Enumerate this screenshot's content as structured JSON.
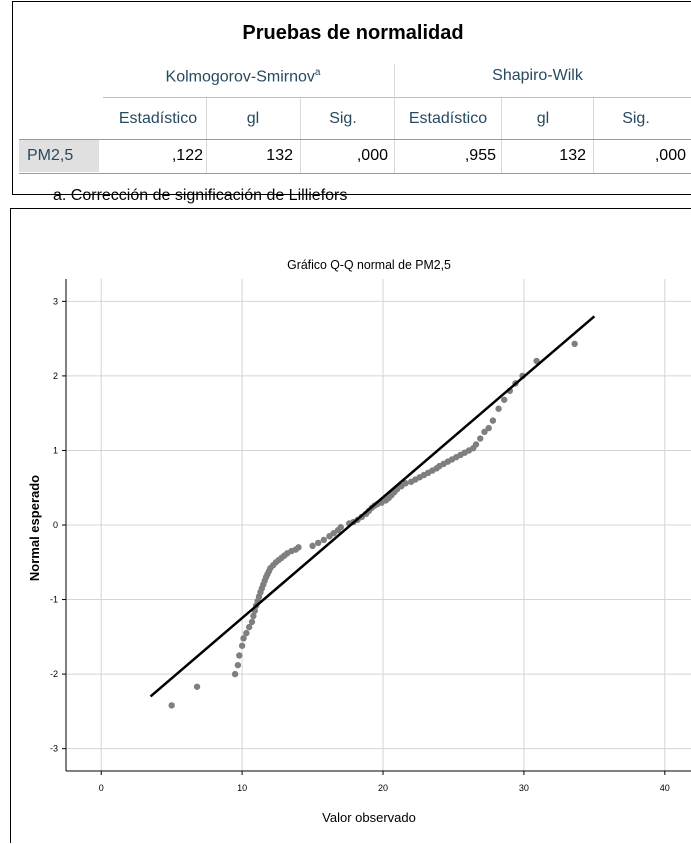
{
  "table": {
    "title": "Pruebas de normalidad",
    "group_ks": "Kolmogorov-Smirnov",
    "group_ks_sup": "a",
    "group_sw": "Shapiro-Wilk",
    "columns": [
      "Estadístico",
      "gl",
      "Sig.",
      "Estadístico",
      "gl",
      "Sig."
    ],
    "row_label": "PM2,5",
    "row_values": [
      ",122",
      "132",
      ",000",
      ",955",
      "132",
      ",000"
    ],
    "footnote": "a. Corrección de significación de Lilliefors"
  },
  "chart_data": {
    "type": "scatter",
    "title": "Gráfico Q-Q normal de PM2,5",
    "xlabel": "Valor observado",
    "ylabel": "Normal esperado",
    "xlim": [
      -2.5,
      42
    ],
    "ylim": [
      -3.3,
      3.3
    ],
    "x_ticks": [
      0,
      10,
      20,
      30,
      40
    ],
    "y_ticks": [
      3,
      2,
      1,
      0,
      -1,
      -2,
      -3
    ],
    "grid": true,
    "point_color": "#7f7f7f",
    "line_color": "#000000",
    "reference_line": [
      [
        3.5,
        -2.3
      ],
      [
        35,
        2.8
      ]
    ],
    "points": [
      [
        5.0,
        -2.42
      ],
      [
        6.8,
        -2.17
      ],
      [
        9.5,
        -2.0
      ],
      [
        9.7,
        -1.88
      ],
      [
        9.8,
        -1.75
      ],
      [
        10.0,
        -1.62
      ],
      [
        10.1,
        -1.52
      ],
      [
        10.3,
        -1.45
      ],
      [
        10.5,
        -1.37
      ],
      [
        10.7,
        -1.3
      ],
      [
        10.8,
        -1.22
      ],
      [
        10.9,
        -1.15
      ],
      [
        11.0,
        -1.08
      ],
      [
        11.1,
        -1.02
      ],
      [
        11.2,
        -0.96
      ],
      [
        11.3,
        -0.9
      ],
      [
        11.4,
        -0.85
      ],
      [
        11.5,
        -0.8
      ],
      [
        11.6,
        -0.75
      ],
      [
        11.7,
        -0.7
      ],
      [
        11.8,
        -0.66
      ],
      [
        11.9,
        -0.62
      ],
      [
        12.0,
        -0.58
      ],
      [
        12.2,
        -0.54
      ],
      [
        12.4,
        -0.5
      ],
      [
        12.6,
        -0.47
      ],
      [
        12.8,
        -0.44
      ],
      [
        13.0,
        -0.41
      ],
      [
        13.2,
        -0.38
      ],
      [
        13.5,
        -0.35
      ],
      [
        13.8,
        -0.33
      ],
      [
        14.0,
        -0.3
      ],
      [
        15.0,
        -0.28
      ],
      [
        15.4,
        -0.24
      ],
      [
        15.8,
        -0.2
      ],
      [
        16.2,
        -0.15
      ],
      [
        16.5,
        -0.11
      ],
      [
        16.8,
        -0.07
      ],
      [
        17.0,
        -0.03
      ],
      [
        17.6,
        0.02
      ],
      [
        17.9,
        0.04
      ],
      [
        18.2,
        0.07
      ],
      [
        18.5,
        0.11
      ],
      [
        18.8,
        0.15
      ],
      [
        19.0,
        0.19
      ],
      [
        19.2,
        0.23
      ],
      [
        19.4,
        0.26
      ],
      [
        19.6,
        0.28
      ],
      [
        19.9,
        0.3
      ],
      [
        20.2,
        0.33
      ],
      [
        20.4,
        0.36
      ],
      [
        20.6,
        0.4
      ],
      [
        20.8,
        0.44
      ],
      [
        21.0,
        0.48
      ],
      [
        21.3,
        0.52
      ],
      [
        21.6,
        0.56
      ],
      [
        22.0,
        0.58
      ],
      [
        22.3,
        0.61
      ],
      [
        22.6,
        0.64
      ],
      [
        22.9,
        0.67
      ],
      [
        23.2,
        0.7
      ],
      [
        23.5,
        0.73
      ],
      [
        23.8,
        0.76
      ],
      [
        24.0,
        0.79
      ],
      [
        24.3,
        0.82
      ],
      [
        24.6,
        0.85
      ],
      [
        24.9,
        0.88
      ],
      [
        25.2,
        0.91
      ],
      [
        25.5,
        0.94
      ],
      [
        25.8,
        0.97
      ],
      [
        26.1,
        1.0
      ],
      [
        26.4,
        1.03
      ],
      [
        26.6,
        1.08
      ],
      [
        26.9,
        1.16
      ],
      [
        27.2,
        1.25
      ],
      [
        27.5,
        1.3
      ],
      [
        27.8,
        1.4
      ],
      [
        28.2,
        1.56
      ],
      [
        28.6,
        1.68
      ],
      [
        29.0,
        1.8
      ],
      [
        29.4,
        1.9
      ],
      [
        29.9,
        2.0
      ],
      [
        30.9,
        2.2
      ],
      [
        33.6,
        2.43
      ]
    ]
  }
}
